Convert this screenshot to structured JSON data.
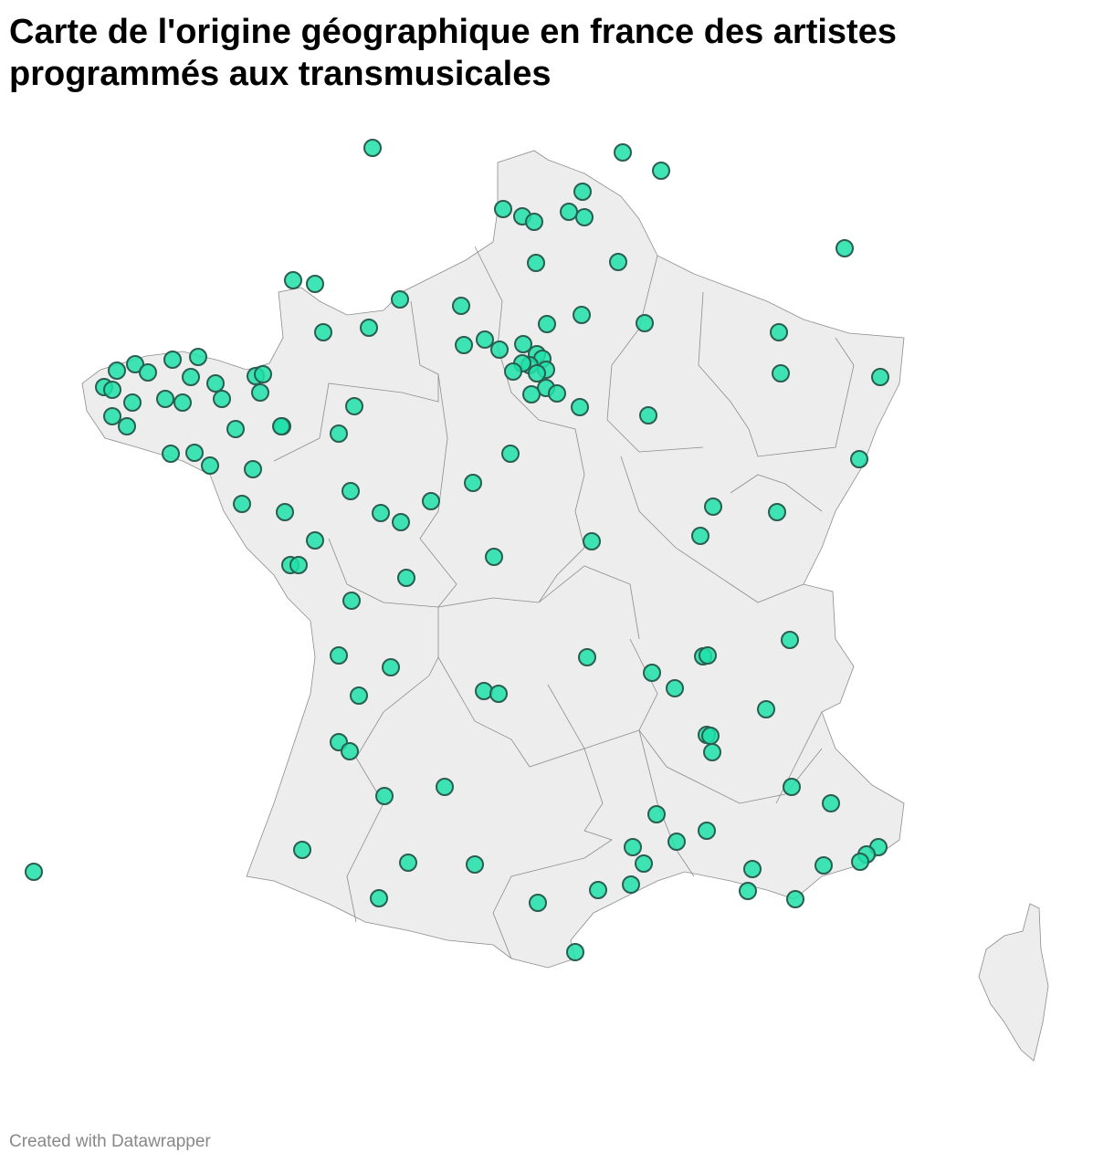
{
  "title": "Carte de l'origine géographique en france des artistes programmés aux transmusicales",
  "credit": "Created with Datawrapper",
  "colors": {
    "marker": "#1ee0a8",
    "marker_stroke": "#2a5e50",
    "land": "#ededed",
    "border": "#8c8c8c"
  },
  "map": {
    "kind": "symbol-map",
    "region": "France",
    "basemap": "regions"
  }
}
